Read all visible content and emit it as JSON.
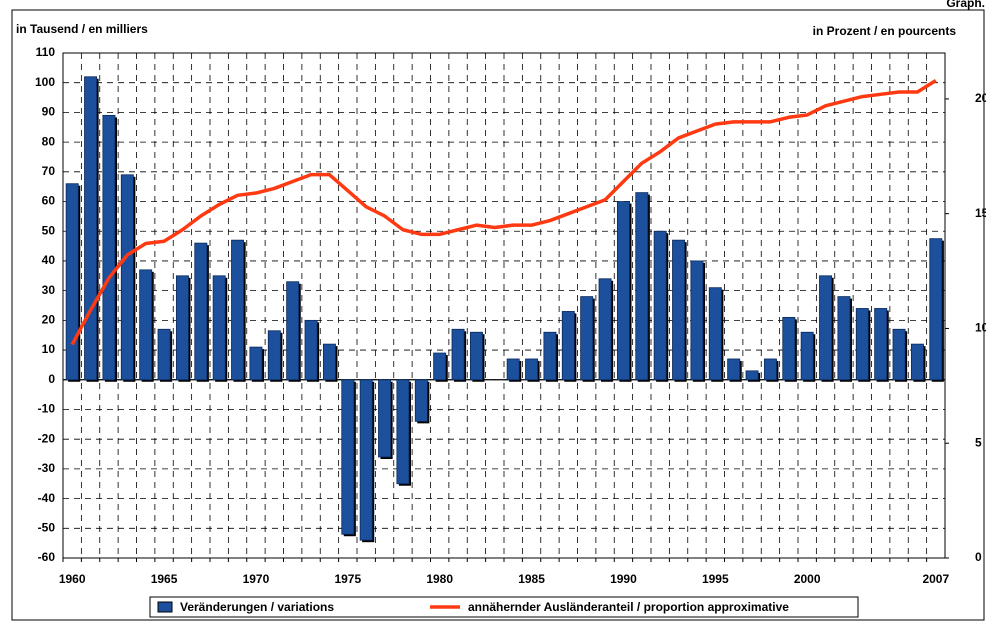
{
  "chart_data": {
    "type": "bar",
    "corner_label": "Graph.",
    "y_axis_label": "in Tausend / en milliers",
    "y2_axis_label": "in Prozent / en pourcents",
    "categories": [
      "1960",
      null,
      null,
      null,
      null,
      "1965",
      null,
      null,
      null,
      null,
      "1970",
      null,
      null,
      null,
      null,
      "1975",
      null,
      null,
      null,
      null,
      "1980",
      null,
      null,
      null,
      null,
      "1985",
      null,
      null,
      null,
      null,
      "1990",
      null,
      null,
      null,
      null,
      "1995",
      null,
      null,
      null,
      null,
      "2000",
      null,
      null,
      null,
      null,
      null,
      null,
      "2007"
    ],
    "series": [
      {
        "name": "Veränderungen / variations",
        "color": "#1c4f9c",
        "type": "bar",
        "values": [
          66,
          102,
          89,
          69,
          37,
          17,
          35,
          46,
          35,
          47,
          11,
          16.5,
          33,
          20,
          12,
          -52,
          -54,
          -26,
          -35,
          -14,
          9,
          17,
          16,
          0,
          7,
          7,
          16,
          23,
          28,
          34,
          60,
          63,
          50,
          47,
          40,
          31,
          7,
          3,
          7,
          21,
          16,
          35,
          28,
          24,
          24,
          17,
          12,
          47.5
        ]
      },
      {
        "name": "annähernder Ausländeranteil / proportion approximative",
        "color": "#ff3a12",
        "type": "line",
        "axis": "y2",
        "values": [
          9.3,
          10.8,
          12.2,
          13.2,
          13.7,
          13.8,
          14.3,
          14.9,
          15.4,
          15.8,
          15.9,
          16.1,
          16.4,
          16.7,
          16.7,
          16.0,
          15.3,
          14.9,
          14.3,
          14.1,
          14.1,
          14.3,
          14.5,
          14.4,
          14.5,
          14.5,
          14.7,
          15.0,
          15.3,
          15.6,
          16.4,
          17.2,
          17.7,
          18.3,
          18.6,
          18.9,
          19.0,
          19.0,
          19.0,
          19.2,
          19.3,
          19.7,
          19.9,
          20.1,
          20.2,
          20.3,
          20.3,
          20.8
        ]
      }
    ],
    "ylim": [
      -60,
      110
    ],
    "yticks": [
      -60,
      -50,
      -40,
      -30,
      -20,
      -10,
      0,
      10,
      20,
      30,
      40,
      50,
      60,
      70,
      80,
      90,
      100,
      110
    ],
    "y2lim": [
      0,
      22
    ],
    "y2ticks": [
      0,
      5,
      10,
      15,
      20
    ],
    "grid": true,
    "legend": "bottom"
  }
}
